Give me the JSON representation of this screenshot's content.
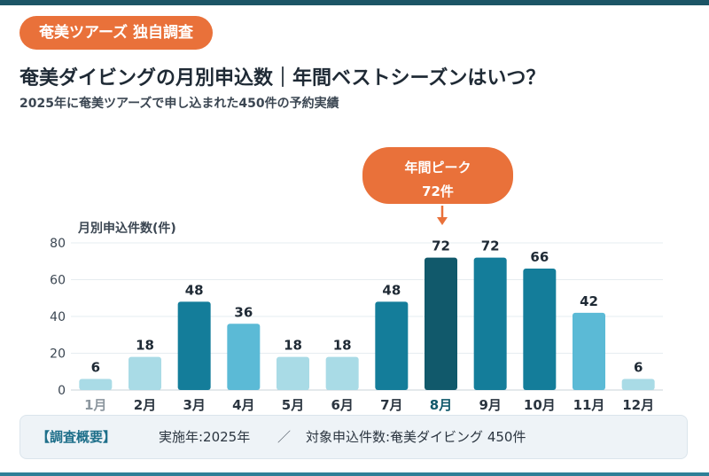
{
  "header": {
    "badge": "奄美ツアーズ 独自調査",
    "title": "奄美ダイビングの月別申込数｜年間ベストシーズンはいつ？",
    "subtitle": "2025年に奄美ツアーズで申し込まれた450件の予約実績"
  },
  "callout": {
    "line1": "年間ピーク",
    "line2": "72件",
    "highlight_category": "8月"
  },
  "chart_data": {
    "type": "bar",
    "ylabel": "月別申込件数(件)",
    "categories": [
      "1月",
      "2月",
      "3月",
      "4月",
      "5月",
      "6月",
      "7月",
      "8月",
      "9月",
      "10月",
      "11月",
      "12月"
    ],
    "values": [
      6,
      18,
      48,
      36,
      18,
      18,
      48,
      72,
      72,
      66,
      42,
      6
    ],
    "ylim": [
      0,
      80
    ],
    "yticks": [
      0,
      20,
      40,
      60,
      80
    ],
    "grid": true,
    "colors": [
      "#a9dbe6",
      "#a9dbe6",
      "#147d9a",
      "#5bbad6",
      "#a9dbe6",
      "#a9dbe6",
      "#147d9a",
      "#11596b",
      "#147d9a",
      "#147d9a",
      "#5bbad6",
      "#a9dbe6"
    ],
    "highlight_index": 7
  },
  "footer": {
    "label": "【調査概要】",
    "year": "実施年:2025年",
    "separator": "／",
    "target": "対象申込件数:奄美ダイビング 450件"
  },
  "colors": {
    "accent": "#e9713a",
    "primary": "#147d9a",
    "peak": "#11596b",
    "text": "#1f2a35"
  }
}
